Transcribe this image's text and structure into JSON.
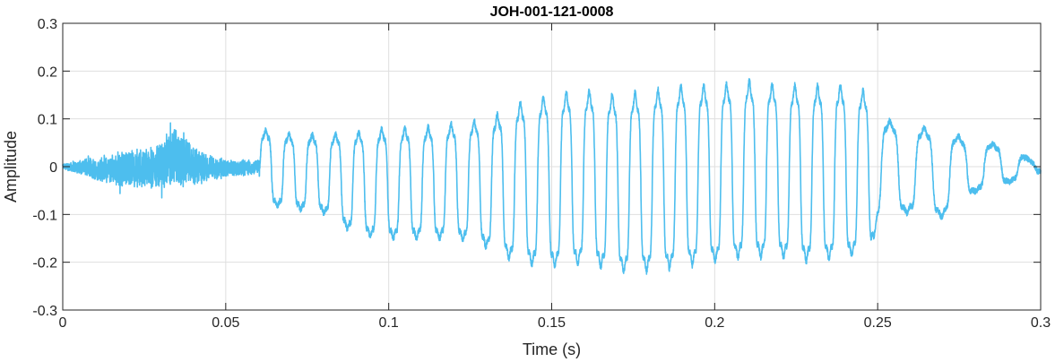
{
  "chart_data": {
    "type": "line",
    "title": "JOH-001-121-0008",
    "xlabel": "Time (s)",
    "ylabel": "Amplitude",
    "xlim": [
      0,
      0.3
    ],
    "ylim": [
      -0.3,
      0.3
    ],
    "xticks": [
      0,
      0.05,
      0.1,
      0.15,
      0.2,
      0.25,
      0.3
    ],
    "xtick_labels": [
      "0",
      "0.05",
      "0.1",
      "0.15",
      "0.2",
      "0.25",
      "0.3"
    ],
    "yticks": [
      -0.3,
      -0.2,
      -0.1,
      0,
      0.1,
      0.2,
      0.3
    ],
    "ytick_labels": [
      "-0.3",
      "-0.2",
      "-0.1",
      "0",
      "0.1",
      "0.2",
      "0.3"
    ],
    "grid": true,
    "line_color": "#4DBEEE",
    "envelope": {
      "t": [
        0,
        0.005,
        0.01,
        0.02,
        0.03,
        0.035,
        0.04,
        0.05,
        0.06,
        0.061,
        0.07,
        0.08,
        0.09,
        0.1,
        0.11,
        0.12,
        0.13,
        0.14,
        0.15,
        0.16,
        0.17,
        0.18,
        0.19,
        0.2,
        0.21,
        0.22,
        0.23,
        0.24,
        0.248,
        0.25,
        0.26,
        0.27,
        0.28,
        0.29,
        0.3
      ],
      "max": [
        0.01,
        0.03,
        0.04,
        0.07,
        0.09,
        0.14,
        0.08,
        0.03,
        0.03,
        0.09,
        0.08,
        0.08,
        0.09,
        0.1,
        0.1,
        0.11,
        0.12,
        0.16,
        0.18,
        0.19,
        0.18,
        0.19,
        0.2,
        0.2,
        0.21,
        0.2,
        0.2,
        0.2,
        0.18,
        0.12,
        0.1,
        0.09,
        0.06,
        0.05,
        0.0
      ],
      "min": [
        -0.01,
        -0.03,
        -0.05,
        -0.08,
        -0.09,
        -0.1,
        -0.08,
        -0.04,
        -0.03,
        -0.09,
        -0.1,
        -0.11,
        -0.16,
        -0.17,
        -0.17,
        -0.17,
        -0.19,
        -0.23,
        -0.24,
        -0.23,
        -0.25,
        -0.25,
        -0.24,
        -0.23,
        -0.22,
        -0.22,
        -0.23,
        -0.22,
        -0.2,
        -0.13,
        -0.11,
        -0.12,
        -0.06,
        -0.04,
        -0.01
      ]
    }
  }
}
